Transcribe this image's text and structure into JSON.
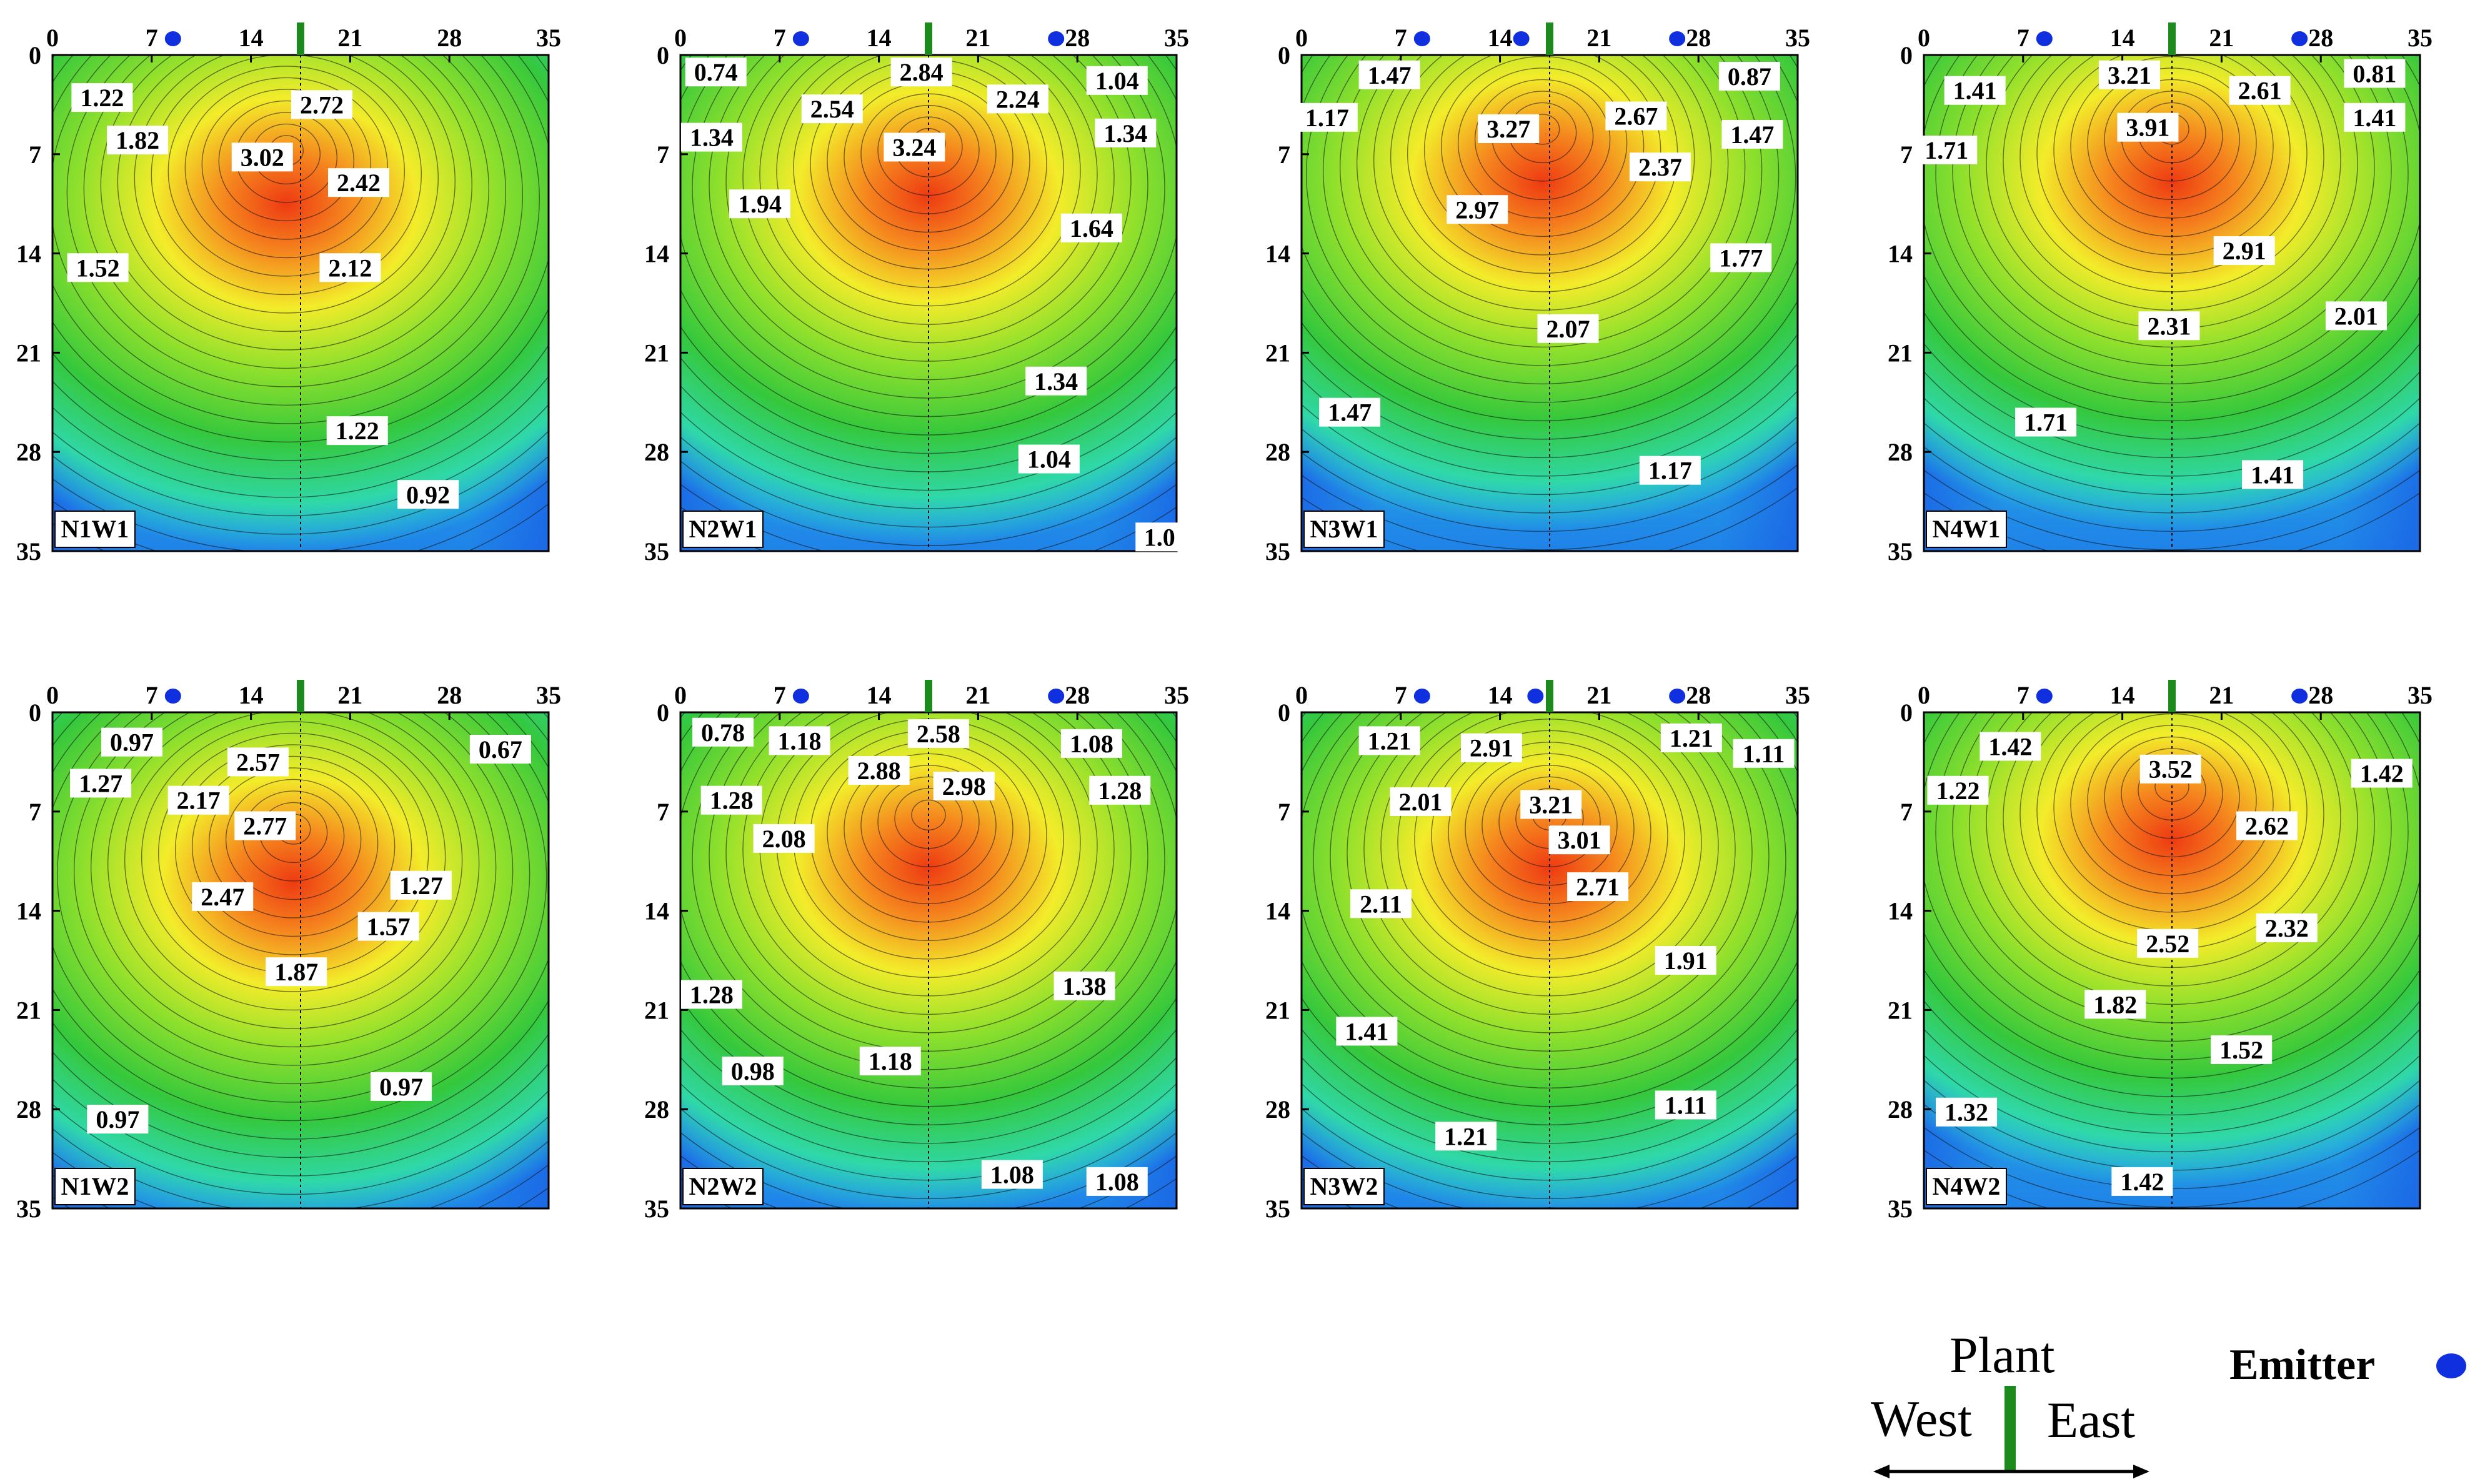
{
  "chart_data": {
    "type": "heatmap",
    "description_type": "contour",
    "x_ticks": [
      0,
      7,
      14,
      21,
      28,
      35
    ],
    "y_ticks": [
      0,
      7,
      14,
      21,
      28,
      35
    ],
    "x_range": [
      0,
      35
    ],
    "y_range": [
      0,
      35
    ],
    "y_inverted": true,
    "plant_x": 17.5,
    "colors": {
      "low": "#1a5fe6",
      "mid": "#2fd8d0",
      "green": "#35c83c",
      "yellow": "#f3ec2a",
      "high": "#ee3a12",
      "emitter": "#1030e0",
      "plant": "#1d8a1d"
    },
    "panels": [
      {
        "name": "N1W1",
        "emitters": [
          8.5
        ],
        "hotspot": {
          "x": 16.5,
          "y": 6.5
        },
        "labels": [
          {
            "t": "1.22",
            "x": 3.5,
            "y": 3
          },
          {
            "t": "2.72",
            "x": 19,
            "y": 3.5
          },
          {
            "t": "1.82",
            "x": 6,
            "y": 6
          },
          {
            "t": "3.02",
            "x": 14.8,
            "y": 7.2
          },
          {
            "t": "2.42",
            "x": 21.6,
            "y": 9
          },
          {
            "t": "1.52",
            "x": 3.2,
            "y": 15
          },
          {
            "t": "2.12",
            "x": 21,
            "y": 15
          },
          {
            "t": "1.22",
            "x": 21.5,
            "y": 26.5
          },
          {
            "t": "0.92",
            "x": 26.5,
            "y": 31
          }
        ]
      },
      {
        "name": "N2W1",
        "emitters": [
          8.5,
          26.5
        ],
        "hotspot": {
          "x": 17.5,
          "y": 6.0
        },
        "labels": [
          {
            "t": "0.74",
            "x": 2.5,
            "y": 1.2
          },
          {
            "t": "2.84",
            "x": 17,
            "y": 1.2
          },
          {
            "t": "1.04",
            "x": 30.8,
            "y": 1.8
          },
          {
            "t": "2.54",
            "x": 10.7,
            "y": 3.8
          },
          {
            "t": "2.24",
            "x": 23.8,
            "y": 3.1
          },
          {
            "t": "1.34",
            "x": 2.2,
            "y": 5.8
          },
          {
            "t": "3.24",
            "x": 16.5,
            "y": 6.5
          },
          {
            "t": "1.34",
            "x": 31.4,
            "y": 5.5
          },
          {
            "t": "1.94",
            "x": 5.6,
            "y": 10.5
          },
          {
            "t": "1.64",
            "x": 29,
            "y": 12.2
          },
          {
            "t": "1.34",
            "x": 26.5,
            "y": 23
          },
          {
            "t": "1.04",
            "x": 26,
            "y": 28.5
          },
          {
            "t": "1.0",
            "x": 33.8,
            "y": 34
          }
        ]
      },
      {
        "name": "N3W1",
        "emitters": [
          8.5,
          15.5,
          26.5
        ],
        "hotspot": {
          "x": 17.0,
          "y": 5.0
        },
        "labels": [
          {
            "t": "1.47",
            "x": 6.2,
            "y": 1.4
          },
          {
            "t": "0.87",
            "x": 31.6,
            "y": 1.5
          },
          {
            "t": "1.17",
            "x": 1.8,
            "y": 4.4
          },
          {
            "t": "3.27",
            "x": 14.6,
            "y": 5.2
          },
          {
            "t": "2.67",
            "x": 23.6,
            "y": 4.3
          },
          {
            "t": "1.47",
            "x": 31.8,
            "y": 5.6
          },
          {
            "t": "2.37",
            "x": 25.3,
            "y": 7.9
          },
          {
            "t": "2.97",
            "x": 12.4,
            "y": 10.9
          },
          {
            "t": "1.77",
            "x": 31,
            "y": 14.3
          },
          {
            "t": "2.07",
            "x": 18.8,
            "y": 19.3
          },
          {
            "t": "1.47",
            "x": 3.4,
            "y": 25.2
          },
          {
            "t": "1.17",
            "x": 26,
            "y": 29.3
          }
        ]
      },
      {
        "name": "N4W1",
        "emitters": [
          8.5,
          26.5
        ],
        "hotspot": {
          "x": 17.5,
          "y": 5.0
        },
        "labels": [
          {
            "t": "3.21",
            "x": 14.5,
            "y": 1.4
          },
          {
            "t": "0.81",
            "x": 31.8,
            "y": 1.3
          },
          {
            "t": "1.41",
            "x": 3.6,
            "y": 2.5
          },
          {
            "t": "2.61",
            "x": 23.7,
            "y": 2.5
          },
          {
            "t": "1.41",
            "x": 31.8,
            "y": 4.4
          },
          {
            "t": "3.91",
            "x": 15.8,
            "y": 5.1
          },
          {
            "t": "1.71",
            "x": 1.6,
            "y": 6.7
          },
          {
            "t": "2.91",
            "x": 22.6,
            "y": 13.8
          },
          {
            "t": "2.01",
            "x": 30.5,
            "y": 18.4
          },
          {
            "t": "2.31",
            "x": 17.3,
            "y": 19.1
          },
          {
            "t": "1.71",
            "x": 8.6,
            "y": 25.9
          },
          {
            "t": "1.41",
            "x": 24.6,
            "y": 29.6
          }
        ]
      },
      {
        "name": "N1W2",
        "emitters": [
          8.5
        ],
        "hotspot": {
          "x": 17.0,
          "y": 8.0
        },
        "labels": [
          {
            "t": "0.97",
            "x": 5.6,
            "y": 2.1
          },
          {
            "t": "0.67",
            "x": 31.6,
            "y": 2.6
          },
          {
            "t": "2.57",
            "x": 14.5,
            "y": 3.5
          },
          {
            "t": "1.27",
            "x": 3.4,
            "y": 5
          },
          {
            "t": "2.17",
            "x": 10.3,
            "y": 6.2
          },
          {
            "t": "2.77",
            "x": 15,
            "y": 8
          },
          {
            "t": "1.27",
            "x": 26,
            "y": 12.2
          },
          {
            "t": "2.47",
            "x": 12,
            "y": 13
          },
          {
            "t": "1.57",
            "x": 23.7,
            "y": 15.1
          },
          {
            "t": "1.87",
            "x": 17.2,
            "y": 18.3
          },
          {
            "t": "0.97",
            "x": 24.6,
            "y": 26.4
          },
          {
            "t": "0.97",
            "x": 4.6,
            "y": 28.7
          }
        ]
      },
      {
        "name": "N2W2",
        "emitters": [
          8.5,
          26.5
        ],
        "hotspot": {
          "x": 17.5,
          "y": 7.0
        },
        "labels": [
          {
            "t": "0.78",
            "x": 3,
            "y": 1.4
          },
          {
            "t": "1.18",
            "x": 8.4,
            "y": 2
          },
          {
            "t": "2.58",
            "x": 18.2,
            "y": 1.5
          },
          {
            "t": "1.08",
            "x": 29,
            "y": 2.2
          },
          {
            "t": "2.88",
            "x": 14,
            "y": 4.1
          },
          {
            "t": "2.98",
            "x": 20,
            "y": 5.2
          },
          {
            "t": "1.28",
            "x": 3.6,
            "y": 6.2
          },
          {
            "t": "1.28",
            "x": 31,
            "y": 5.5
          },
          {
            "t": "2.08",
            "x": 7.3,
            "y": 8.9
          },
          {
            "t": "1.38",
            "x": 28.5,
            "y": 19.3
          },
          {
            "t": "1.28",
            "x": 2.2,
            "y": 19.9
          },
          {
            "t": "1.18",
            "x": 14.8,
            "y": 24.6
          },
          {
            "t": "0.98",
            "x": 5.1,
            "y": 25.3
          },
          {
            "t": "1.08",
            "x": 23.4,
            "y": 32.6
          },
          {
            "t": "1.08",
            "x": 30.8,
            "y": 33.1
          }
        ]
      },
      {
        "name": "N3W2",
        "emitters": [
          8.5,
          16.5,
          26.5
        ],
        "hotspot": {
          "x": 17.5,
          "y": 7.0
        },
        "labels": [
          {
            "t": "1.21",
            "x": 6.2,
            "y": 2
          },
          {
            "t": "2.91",
            "x": 13.4,
            "y": 2.5
          },
          {
            "t": "1.21",
            "x": 27.5,
            "y": 1.8
          },
          {
            "t": "1.11",
            "x": 32.6,
            "y": 2.9
          },
          {
            "t": "2.01",
            "x": 8.4,
            "y": 6.3
          },
          {
            "t": "3.21",
            "x": 17.6,
            "y": 6.5
          },
          {
            "t": "3.01",
            "x": 19.6,
            "y": 9
          },
          {
            "t": "2.71",
            "x": 20.9,
            "y": 12.3
          },
          {
            "t": "2.11",
            "x": 5.6,
            "y": 13.5
          },
          {
            "t": "1.91",
            "x": 27.1,
            "y": 17.5
          },
          {
            "t": "1.41",
            "x": 4.6,
            "y": 22.5
          },
          {
            "t": "1.11",
            "x": 27.1,
            "y": 27.7
          },
          {
            "t": "1.21",
            "x": 11.6,
            "y": 29.9
          }
        ]
      },
      {
        "name": "N4W2",
        "emitters": [
          8.5,
          26.5
        ],
        "hotspot": {
          "x": 17.5,
          "y": 5.0
        },
        "labels": [
          {
            "t": "1.42",
            "x": 6.1,
            "y": 2.4
          },
          {
            "t": "3.52",
            "x": 17.4,
            "y": 4
          },
          {
            "t": "1.42",
            "x": 32.3,
            "y": 4.3
          },
          {
            "t": "1.22",
            "x": 2.4,
            "y": 5.5
          },
          {
            "t": "2.62",
            "x": 24.2,
            "y": 8
          },
          {
            "t": "2.32",
            "x": 25.6,
            "y": 15.2
          },
          {
            "t": "2.52",
            "x": 17.2,
            "y": 16.3
          },
          {
            "t": "1.82",
            "x": 13.5,
            "y": 20.6
          },
          {
            "t": "1.52",
            "x": 22.4,
            "y": 23.8
          },
          {
            "t": "1.32",
            "x": 3,
            "y": 28.2
          },
          {
            "t": "1.42",
            "x": 15.4,
            "y": 33.1
          }
        ]
      }
    ]
  },
  "legend": {
    "plant_label": "Plant",
    "west_label": "West",
    "east_label": "East",
    "emitter_label": "Emitter"
  }
}
